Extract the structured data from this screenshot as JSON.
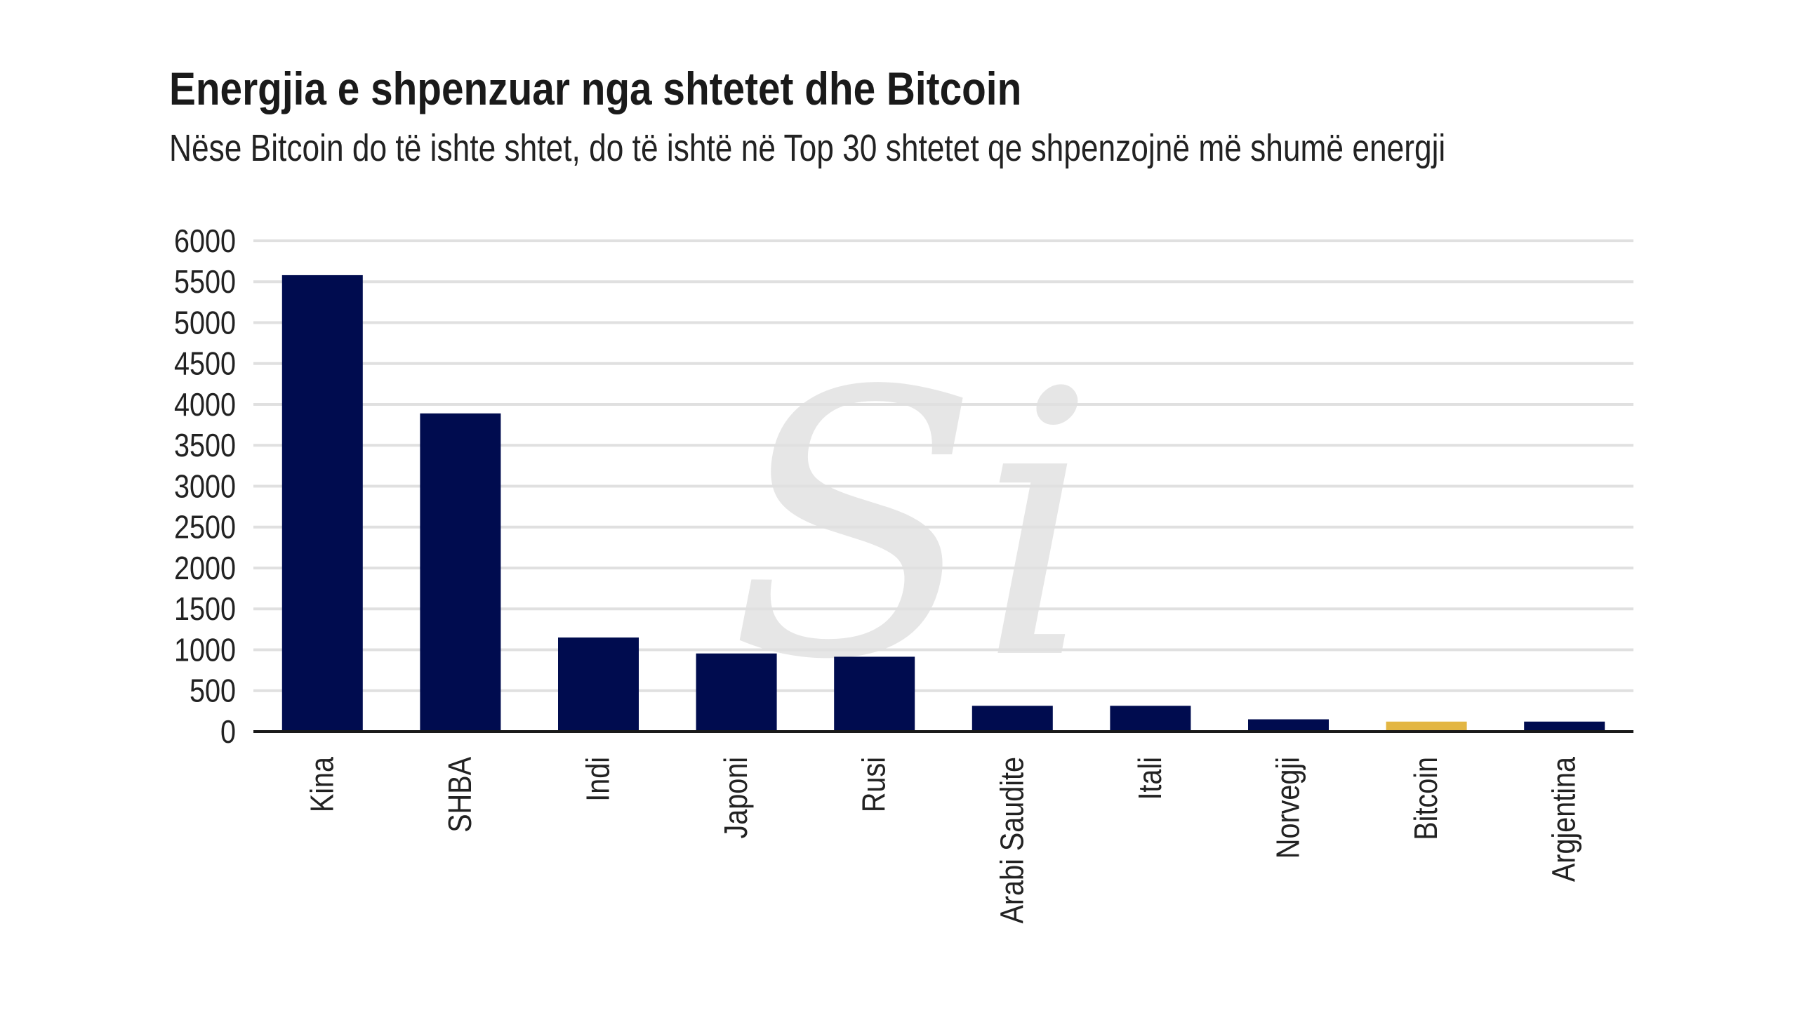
{
  "title": "Energjia e shpenzuar nga shtetet dhe Bitcoin",
  "subtitle": "Nëse Bitcoin do të ishte shtet, do të ishtë në Top 30 shtetet qe shpenzojnë më shumë energji",
  "watermark": "Si",
  "chart_data": {
    "type": "bar",
    "title": "Energjia e shpenzuar nga shtetet dhe Bitcoin",
    "xlabel": "",
    "ylabel": "",
    "ylim": [
      0,
      6000
    ],
    "yticks": [
      0,
      500,
      1000,
      1500,
      2000,
      2500,
      3000,
      3500,
      4000,
      4500,
      5000,
      5500,
      6000
    ],
    "grid": true,
    "categories": [
      "Kina",
      "SHBA",
      "Indi",
      "Japoni",
      "Rusi",
      "Arabi Saudite",
      "Itali",
      "Norvegji",
      "Bitcoin",
      "Argjentina"
    ],
    "values": [
      5580,
      3890,
      1150,
      955,
      915,
      315,
      315,
      150,
      122,
      122
    ],
    "highlight": "Bitcoin"
  },
  "colors": {
    "bar": "#000c4f",
    "highlight": "#e3b643",
    "grid": "#e0e0e0",
    "axis": "#1a1a1a"
  }
}
